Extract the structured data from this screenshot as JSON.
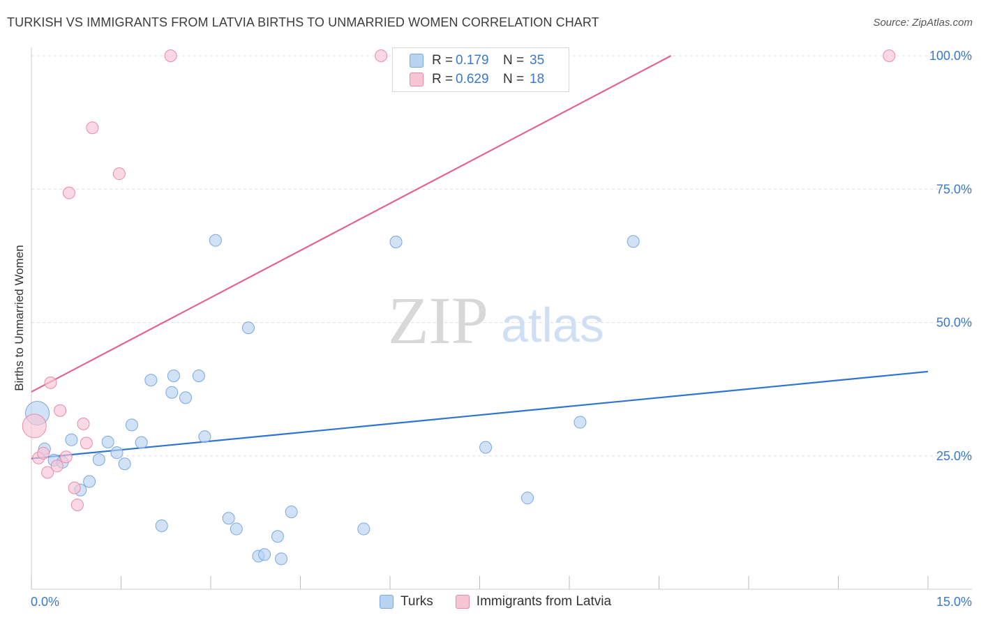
{
  "header": {
    "title": "TURKISH VS IMMIGRANTS FROM LATVIA BIRTHS TO UNMARRIED WOMEN CORRELATION CHART",
    "source": "Source: ZipAtlas.com"
  },
  "watermark": {
    "zip": "ZIP",
    "atlas": "atlas"
  },
  "legend": {
    "turks": {
      "r_label": "R =",
      "r_value": "0.179",
      "n_label": "N =",
      "n_value": "35"
    },
    "latvia": {
      "r_label": "R =",
      "r_value": "0.629",
      "n_label": "N =",
      "n_value": "18"
    }
  },
  "bottom_legend": {
    "turks": "Turks",
    "latvia": "Immigrants from Latvia"
  },
  "colors": {
    "turks_fill": "#b9d3f3",
    "turks_stroke": "#7aa7df",
    "turks_line": "#2f74d0",
    "latvia_fill": "#f8c5d5",
    "latvia_stroke": "#e98aa8",
    "latvia_line": "#e0648c",
    "tick_text": "#3a78c9",
    "grid": "#dddddd"
  },
  "chart_data": {
    "type": "scatter",
    "title": "TURKISH VS IMMIGRANTS FROM LATVIA BIRTHS TO UNMARRIED WOMEN CORRELATION CHART",
    "xlabel": "",
    "ylabel": "Births to Unmarried Women",
    "xlim": [
      0,
      15
    ],
    "ylim": [
      0,
      102
    ],
    "x_tick_labels": [
      "0.0%",
      "15.0%"
    ],
    "y_ticks": [
      25,
      50,
      75,
      100
    ],
    "y_tick_labels": [
      "25.0%",
      "50.0%",
      "75.0%",
      "100.0%"
    ],
    "grid": true,
    "legend_placement": "top-center",
    "series": [
      {
        "name": "Turks",
        "r": 0.179,
        "n": 35,
        "trend": {
          "x": [
            0,
            15
          ],
          "y": [
            24.5,
            40.8
          ]
        },
        "points": [
          {
            "x": 0.1,
            "y": 33.0,
            "big": true
          },
          {
            "x": 0.22,
            "y": 26.3
          },
          {
            "x": 0.38,
            "y": 24.2
          },
          {
            "x": 0.52,
            "y": 23.8
          },
          {
            "x": 0.67,
            "y": 28.0
          },
          {
            "x": 0.82,
            "y": 18.6
          },
          {
            "x": 0.97,
            "y": 20.2
          },
          {
            "x": 1.13,
            "y": 24.3
          },
          {
            "x": 1.28,
            "y": 27.6
          },
          {
            "x": 1.43,
            "y": 25.6
          },
          {
            "x": 1.56,
            "y": 23.5
          },
          {
            "x": 1.68,
            "y": 30.8
          },
          {
            "x": 1.84,
            "y": 27.5
          },
          {
            "x": 2.0,
            "y": 39.2
          },
          {
            "x": 2.18,
            "y": 11.9
          },
          {
            "x": 2.35,
            "y": 36.9
          },
          {
            "x": 2.38,
            "y": 40.0
          },
          {
            "x": 2.58,
            "y": 35.9
          },
          {
            "x": 2.8,
            "y": 40.0
          },
          {
            "x": 2.9,
            "y": 28.6
          },
          {
            "x": 3.08,
            "y": 65.4
          },
          {
            "x": 3.3,
            "y": 13.3
          },
          {
            "x": 3.43,
            "y": 11.3
          },
          {
            "x": 3.63,
            "y": 49.0
          },
          {
            "x": 3.8,
            "y": 6.2
          },
          {
            "x": 3.9,
            "y": 6.5
          },
          {
            "x": 4.12,
            "y": 9.9
          },
          {
            "x": 4.18,
            "y": 5.7
          },
          {
            "x": 4.35,
            "y": 14.5
          },
          {
            "x": 5.56,
            "y": 11.3
          },
          {
            "x": 6.1,
            "y": 65.1
          },
          {
            "x": 7.6,
            "y": 26.6
          },
          {
            "x": 8.3,
            "y": 17.1
          },
          {
            "x": 9.18,
            "y": 31.3
          },
          {
            "x": 10.07,
            "y": 65.2
          }
        ]
      },
      {
        "name": "Immigrants from Latvia",
        "r": 0.629,
        "n": 18,
        "trend": {
          "x": [
            0,
            10.7
          ],
          "y": [
            37.0,
            100
          ]
        },
        "points": [
          {
            "x": 0.05,
            "y": 30.6,
            "big": true
          },
          {
            "x": 0.12,
            "y": 24.6
          },
          {
            "x": 0.2,
            "y": 25.5
          },
          {
            "x": 0.27,
            "y": 21.9
          },
          {
            "x": 0.32,
            "y": 38.7
          },
          {
            "x": 0.43,
            "y": 23.1
          },
          {
            "x": 0.48,
            "y": 33.5
          },
          {
            "x": 0.58,
            "y": 24.8
          },
          {
            "x": 0.63,
            "y": 74.3
          },
          {
            "x": 0.72,
            "y": 19.0
          },
          {
            "x": 0.77,
            "y": 15.8
          },
          {
            "x": 0.87,
            "y": 31.0
          },
          {
            "x": 0.92,
            "y": 27.4
          },
          {
            "x": 1.02,
            "y": 86.5
          },
          {
            "x": 1.47,
            "y": 77.9
          },
          {
            "x": 2.33,
            "y": 100.0
          },
          {
            "x": 5.85,
            "y": 100.0
          },
          {
            "x": 14.35,
            "y": 100.0
          }
        ]
      }
    ]
  }
}
